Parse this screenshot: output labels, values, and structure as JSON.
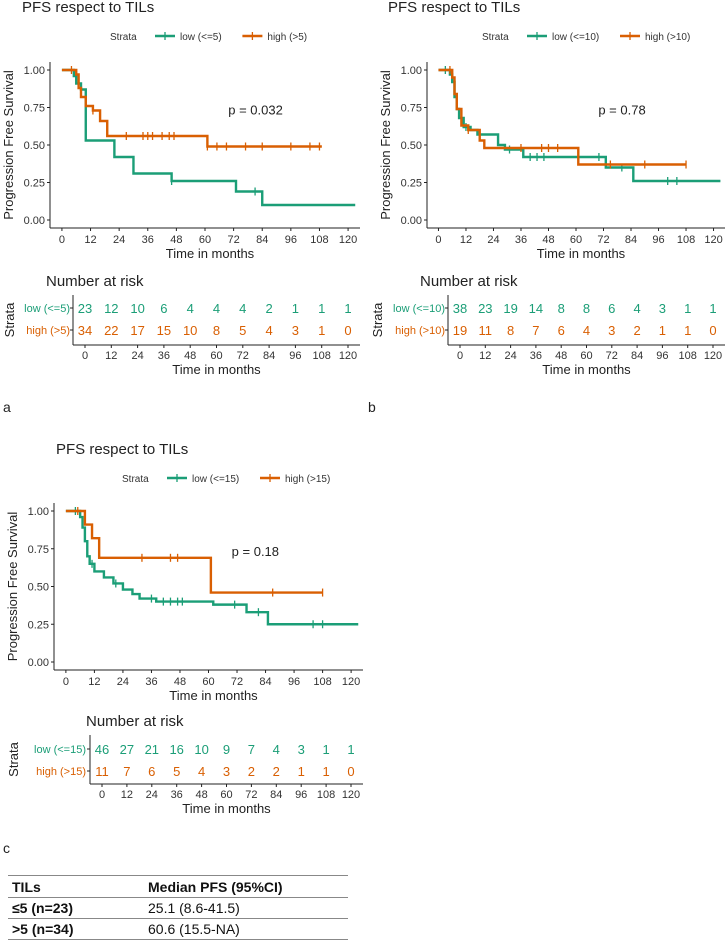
{
  "chart_data": [
    {
      "panel": "a",
      "type": "line",
      "title": "PFS respect to TILs",
      "xlabel": "Time in months",
      "ylabel": "Progression Free Survival",
      "legend_title": "Strata",
      "xticks": [
        "0",
        "12",
        "24",
        "36",
        "48",
        "60",
        "72",
        "84",
        "96",
        "108",
        "120"
      ],
      "yticks": [
        "0.00",
        "0.25",
        "0.50",
        "0.75",
        "1.00"
      ],
      "xlim": [
        -5,
        125
      ],
      "ylim": [
        0,
        1
      ],
      "p_value": "p = 0.032",
      "risk_title": "Number at risk",
      "risk_xlabel": "Time in months",
      "risk_ylabel": "Strata",
      "series": [
        {
          "name": "low (<=5)",
          "color": "#1b9e77",
          "steps": [
            [
              0,
              1
            ],
            [
              5,
              0.96
            ],
            [
              6,
              0.91
            ],
            [
              8,
              0.87
            ],
            [
              10,
              0.53
            ],
            [
              20,
              0.53
            ],
            [
              22,
              0.42
            ],
            [
              28,
              0.42
            ],
            [
              30,
              0.31
            ],
            [
              45,
              0.31
            ],
            [
              46,
              0.26
            ],
            [
              72,
              0.26
            ],
            [
              73,
              0.19
            ],
            [
              83,
              0.19
            ],
            [
              84,
              0.1
            ],
            [
              123,
              0.1
            ]
          ],
          "censors": [
            [
              46,
              0.26
            ],
            [
              81,
              0.19
            ]
          ],
          "risk": [
            "23",
            "12",
            "10",
            "6",
            "4",
            "4",
            "4",
            "2",
            "1",
            "1",
            "1"
          ]
        },
        {
          "name": "high (>5)",
          "color": "#d95f02",
          "steps": [
            [
              0,
              1
            ],
            [
              6,
              0.97
            ],
            [
              7,
              0.88
            ],
            [
              8,
              0.82
            ],
            [
              10,
              0.76
            ],
            [
              13,
              0.73
            ],
            [
              16,
              0.66
            ],
            [
              19,
              0.56
            ],
            [
              60,
              0.56
            ],
            [
              61,
              0.49
            ],
            [
              109,
              0.49
            ]
          ],
          "censors": [
            [
              4,
              1
            ],
            [
              13,
              0.73
            ],
            [
              27,
              0.56
            ],
            [
              34,
              0.56
            ],
            [
              36,
              0.56
            ],
            [
              38,
              0.56
            ],
            [
              42,
              0.56
            ],
            [
              45,
              0.56
            ],
            [
              47,
              0.56
            ],
            [
              61,
              0.49
            ],
            [
              65,
              0.49
            ],
            [
              69,
              0.49
            ],
            [
              77,
              0.49
            ],
            [
              84,
              0.49
            ],
            [
              96,
              0.49
            ],
            [
              104,
              0.49
            ],
            [
              108,
              0.49
            ]
          ],
          "risk": [
            "34",
            "22",
            "17",
            "15",
            "10",
            "8",
            "5",
            "4",
            "3",
            "1",
            "0"
          ]
        }
      ]
    },
    {
      "panel": "b",
      "type": "line",
      "title": "PFS respect to TILs",
      "xlabel": "Time in months",
      "ylabel": "Progression Free Survival",
      "legend_title": "Strata",
      "xticks": [
        "0",
        "12",
        "24",
        "36",
        "48",
        "60",
        "72",
        "84",
        "96",
        "108",
        "120"
      ],
      "yticks": [
        "0.00",
        "0.25",
        "0.50",
        "0.75",
        "1.00"
      ],
      "xlim": [
        -5,
        125
      ],
      "ylim": [
        0,
        1
      ],
      "p_value": "p = 0.78",
      "risk_title": "Number at risk",
      "risk_xlabel": "Time in months",
      "risk_ylabel": "Strata",
      "series": [
        {
          "name": "low (<=10)",
          "color": "#1b9e77",
          "steps": [
            [
              0,
              1
            ],
            [
              5,
              0.97
            ],
            [
              6,
              0.92
            ],
            [
              7,
              0.82
            ],
            [
              8,
              0.74
            ],
            [
              9,
              0.68
            ],
            [
              11,
              0.62
            ],
            [
              14,
              0.6
            ],
            [
              17,
              0.57
            ],
            [
              24,
              0.57
            ],
            [
              26,
              0.5
            ],
            [
              29,
              0.47
            ],
            [
              36,
              0.47
            ],
            [
              37,
              0.42
            ],
            [
              72,
              0.42
            ],
            [
              73,
              0.35
            ],
            [
              84,
              0.35
            ],
            [
              85,
              0.26
            ],
            [
              123,
              0.26
            ]
          ],
          "censors": [
            [
              3,
              1
            ],
            [
              12,
              0.62
            ],
            [
              18,
              0.57
            ],
            [
              31,
              0.47
            ],
            [
              40,
              0.42
            ],
            [
              43,
              0.42
            ],
            [
              46,
              0.42
            ],
            [
              70,
              0.42
            ],
            [
              80,
              0.35
            ],
            [
              100,
              0.26
            ],
            [
              104,
              0.26
            ]
          ],
          "risk": [
            "38",
            "23",
            "19",
            "14",
            "8",
            "8",
            "6",
            "4",
            "3",
            "1",
            "1"
          ]
        },
        {
          "name": "high (>10)",
          "color": "#d95f02",
          "steps": [
            [
              0,
              1
            ],
            [
              6,
              0.95
            ],
            [
              7,
              0.84
            ],
            [
              8,
              0.74
            ],
            [
              10,
              0.63
            ],
            [
              13,
              0.6
            ],
            [
              18,
              0.53
            ],
            [
              20,
              0.48
            ],
            [
              60,
              0.48
            ],
            [
              61,
              0.37
            ],
            [
              108,
              0.37
            ]
          ],
          "censors": [
            [
              5,
              1
            ],
            [
              13,
              0.6
            ],
            [
              36,
              0.48
            ],
            [
              45,
              0.48
            ],
            [
              48,
              0.48
            ],
            [
              52,
              0.48
            ],
            [
              75,
              0.37
            ],
            [
              90,
              0.37
            ],
            [
              108,
              0.37
            ]
          ],
          "risk": [
            "19",
            "11",
            "8",
            "7",
            "6",
            "4",
            "3",
            "2",
            "1",
            "1",
            "0"
          ]
        }
      ]
    },
    {
      "panel": "c",
      "type": "line",
      "title": "PFS respect to TILs",
      "xlabel": "Time in months",
      "ylabel": "Progression Free Survival",
      "legend_title": "Strata",
      "xticks": [
        "0",
        "12",
        "24",
        "36",
        "48",
        "60",
        "72",
        "84",
        "96",
        "108",
        "120"
      ],
      "yticks": [
        "0.00",
        "0.25",
        "0.50",
        "0.75",
        "1.00"
      ],
      "xlim": [
        -5,
        125
      ],
      "ylim": [
        0,
        1
      ],
      "p_value": "p = 0.18",
      "risk_title": "Number at risk",
      "risk_xlabel": "Time in months",
      "risk_ylabel": "Strata",
      "series": [
        {
          "name": "low (<=15)",
          "color": "#1b9e77",
          "steps": [
            [
              0,
              1
            ],
            [
              6,
              0.96
            ],
            [
              7,
              0.89
            ],
            [
              8,
              0.8
            ],
            [
              9,
              0.7
            ],
            [
              10,
              0.65
            ],
            [
              12,
              0.6
            ],
            [
              16,
              0.56
            ],
            [
              20,
              0.52
            ],
            [
              24,
              0.48
            ],
            [
              28,
              0.45
            ],
            [
              31,
              0.42
            ],
            [
              38,
              0.4
            ],
            [
              60,
              0.4
            ],
            [
              62,
              0.38
            ],
            [
              74,
              0.38
            ],
            [
              76,
              0.33
            ],
            [
              84,
              0.33
            ],
            [
              85,
              0.25
            ],
            [
              123,
              0.25
            ]
          ],
          "censors": [
            [
              4,
              1
            ],
            [
              11,
              0.65
            ],
            [
              21,
              0.52
            ],
            [
              36,
              0.42
            ],
            [
              41,
              0.4
            ],
            [
              44,
              0.4
            ],
            [
              47,
              0.4
            ],
            [
              49,
              0.4
            ],
            [
              71,
              0.38
            ],
            [
              81,
              0.33
            ],
            [
              104,
              0.25
            ],
            [
              108,
              0.25
            ]
          ],
          "risk": [
            "46",
            "27",
            "21",
            "16",
            "10",
            "9",
            "7",
            "4",
            "3",
            "1",
            "1"
          ]
        },
        {
          "name": "high (>15)",
          "color": "#d95f02",
          "steps": [
            [
              0,
              1
            ],
            [
              8,
              0.91
            ],
            [
              11,
              0.82
            ],
            [
              14,
              0.69
            ],
            [
              60,
              0.69
            ],
            [
              61,
              0.46
            ],
            [
              108,
              0.46
            ]
          ],
          "censors": [
            [
              5,
              1
            ],
            [
              32,
              0.69
            ],
            [
              44,
              0.69
            ],
            [
              47,
              0.69
            ],
            [
              87,
              0.46
            ],
            [
              108,
              0.46
            ]
          ],
          "risk": [
            "11",
            "7",
            "6",
            "5",
            "4",
            "3",
            "2",
            "2",
            "1",
            "1",
            "0"
          ]
        }
      ]
    }
  ],
  "panel_labels": [
    "a",
    "b",
    "c"
  ],
  "table": {
    "headers": [
      "TILs",
      "Median PFS (95%CI)"
    ],
    "rows": [
      {
        "label": "≤5 (n=23)",
        "value": "25.1 (8.6-41.5)"
      },
      {
        "label": ">5 (n=34)",
        "value": "60.6 (15.5-NA)"
      }
    ]
  }
}
